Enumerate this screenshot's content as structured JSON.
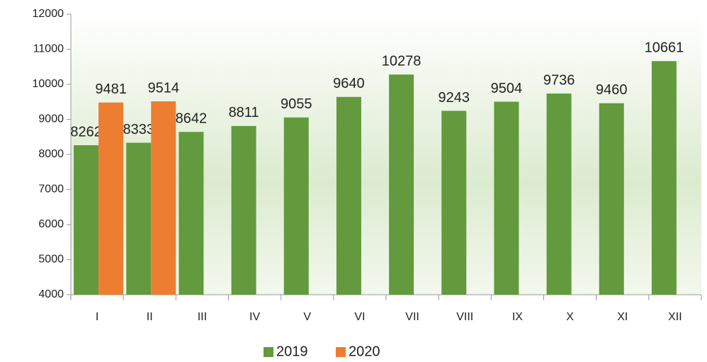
{
  "chart_data": {
    "type": "bar",
    "categories": [
      "I",
      "II",
      "III",
      "IV",
      "V",
      "VI",
      "VII",
      "VIII",
      "IX",
      "X",
      "XI",
      "XII"
    ],
    "series": [
      {
        "name": "2019",
        "color": "#629a3d",
        "values": [
          8262,
          8333,
          8642,
          8811,
          9055,
          9640,
          10278,
          9243,
          9504,
          9736,
          9460,
          10661
        ]
      },
      {
        "name": "2020",
        "color": "#ed7d31",
        "values": [
          9481,
          9514,
          null,
          null,
          null,
          null,
          null,
          null,
          null,
          null,
          null,
          null
        ]
      }
    ],
    "ylim": [
      4000,
      12000
    ],
    "yticks": [
      4000,
      5000,
      6000,
      7000,
      8000,
      9000,
      10000,
      11000,
      12000
    ],
    "legend": "bottom"
  }
}
